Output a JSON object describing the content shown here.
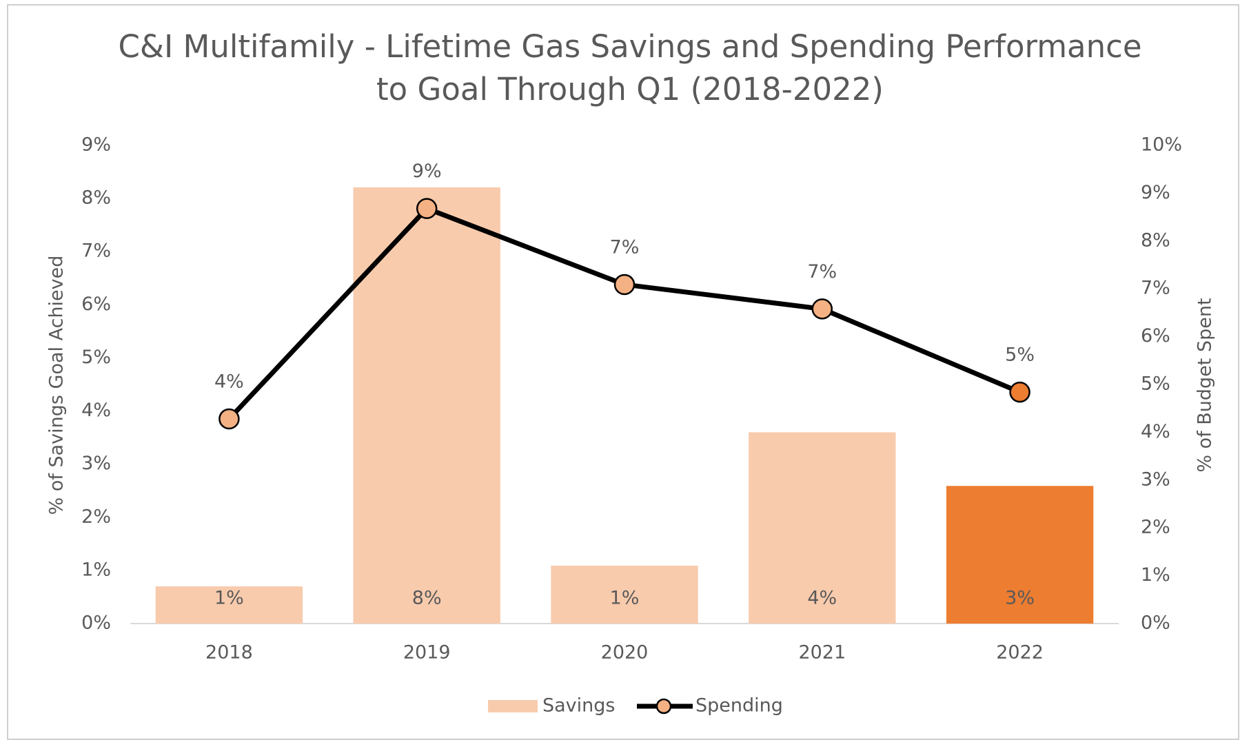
{
  "chart_data": {
    "type": "bar",
    "title": [
      "C&I Multifamily - Lifetime Gas Savings and Spending Performance",
      "to Goal Through Q1 (2018-2022)"
    ],
    "categories": [
      "2018",
      "2019",
      "2020",
      "2021",
      "2022"
    ],
    "y_label": "% of Savings Goal Achieved",
    "y2_label": "% of Budget Spent",
    "ylim": [
      0,
      9
    ],
    "yticks": [
      {
        "value": 0,
        "label": "0%"
      },
      {
        "value": 1,
        "label": "1%"
      },
      {
        "value": 2,
        "label": "2%"
      },
      {
        "value": 3,
        "label": "3%"
      },
      {
        "value": 4,
        "label": "4%"
      },
      {
        "value": 5,
        "label": "5%"
      },
      {
        "value": 6,
        "label": "6%"
      },
      {
        "value": 7,
        "label": "7%"
      },
      {
        "value": 8,
        "label": "8%"
      },
      {
        "value": 9,
        "label": "9%"
      }
    ],
    "y2lim": [
      0,
      10
    ],
    "y2ticks": [
      {
        "value": 0,
        "label": "0%"
      },
      {
        "value": 1,
        "label": "1%"
      },
      {
        "value": 2,
        "label": "2%"
      },
      {
        "value": 3,
        "label": "3%"
      },
      {
        "value": 4,
        "label": "4%"
      },
      {
        "value": 5,
        "label": "5%"
      },
      {
        "value": 6,
        "label": "6%"
      },
      {
        "value": 7,
        "label": "7%"
      },
      {
        "value": 8,
        "label": "8%"
      },
      {
        "value": 9,
        "label": "9%"
      },
      {
        "value": 10,
        "label": "10%"
      }
    ],
    "legend": "bottom",
    "series": [
      {
        "name": "Savings",
        "type": "bar",
        "color": "#f8cbad",
        "colors": [
          "#f8cbad",
          "#f8cbad",
          "#f8cbad",
          "#f8cbad",
          "#ed7d31"
        ],
        "values": [
          0.7,
          8.21,
          1.09,
          3.6,
          2.59
        ],
        "value_labels": [
          "1%",
          "8%",
          "1%",
          "4%",
          "3%"
        ]
      },
      {
        "name": "Spending",
        "type": "line",
        "axis": "y2",
        "color": "#000000",
        "marker_color": "#f4b183",
        "marker_colors": [
          "#f4b183",
          "#f4b183",
          "#f4b183",
          "#f4b183",
          "#ed7d31"
        ],
        "values": [
          4.28,
          8.68,
          7.09,
          6.58,
          4.84
        ],
        "value_labels": [
          "4%",
          "9%",
          "7%",
          "7%",
          "5%"
        ]
      }
    ]
  }
}
